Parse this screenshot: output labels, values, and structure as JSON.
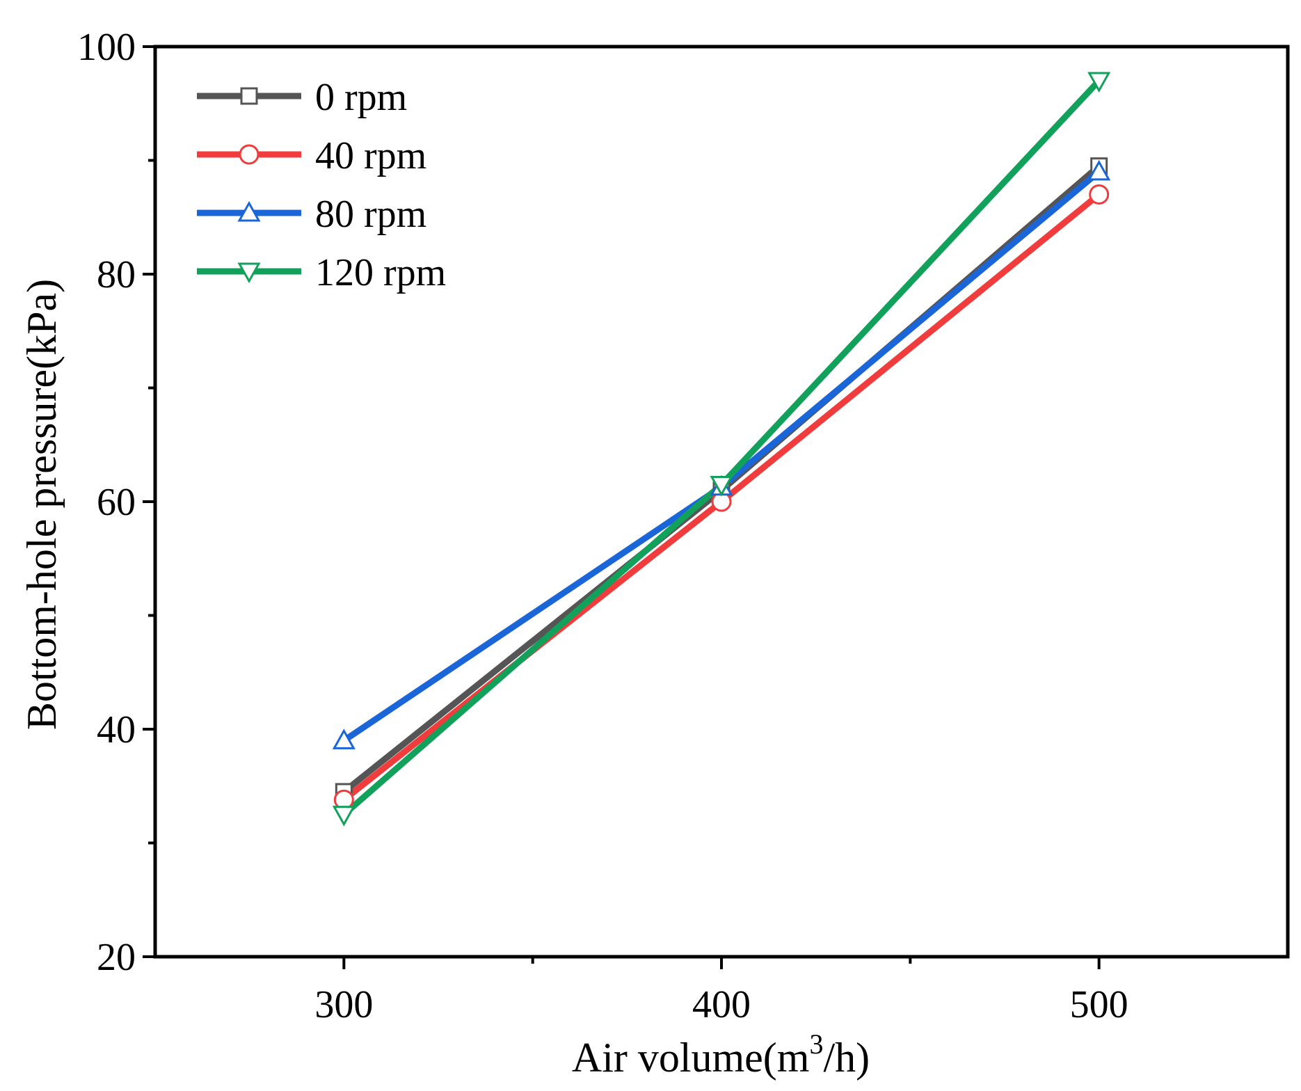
{
  "chart_data": {
    "type": "line",
    "title": "",
    "xlabel": "Air volume(m",
    "xlabel_sup": "3",
    "xlabel_tail": "/h)",
    "ylabel": "Bottom-hole pressure(kPa)",
    "x": [
      300,
      400,
      500
    ],
    "xlim": [
      250,
      550
    ],
    "ylim": [
      20,
      100
    ],
    "xticks": [
      300,
      400,
      500
    ],
    "xminor": [
      350,
      450
    ],
    "yticks": [
      20,
      40,
      60,
      80,
      100
    ],
    "yminor": [
      30,
      50,
      70,
      90
    ],
    "grid": false,
    "legend_position": "top-left",
    "series": [
      {
        "name": "0 rpm",
        "values": [
          34.5,
          61,
          89.5
        ],
        "color": "#555555",
        "marker": "square"
      },
      {
        "name": "40 rpm",
        "values": [
          33.8,
          60,
          87
        ],
        "color": "#f03c3c",
        "marker": "circle"
      },
      {
        "name": "80 rpm",
        "values": [
          39,
          61.3,
          89
        ],
        "color": "#1a66d9",
        "marker": "triangle-up"
      },
      {
        "name": "120 rpm",
        "values": [
          32.5,
          61.5,
          97
        ],
        "color": "#12a15a",
        "marker": "triangle-down"
      }
    ]
  }
}
